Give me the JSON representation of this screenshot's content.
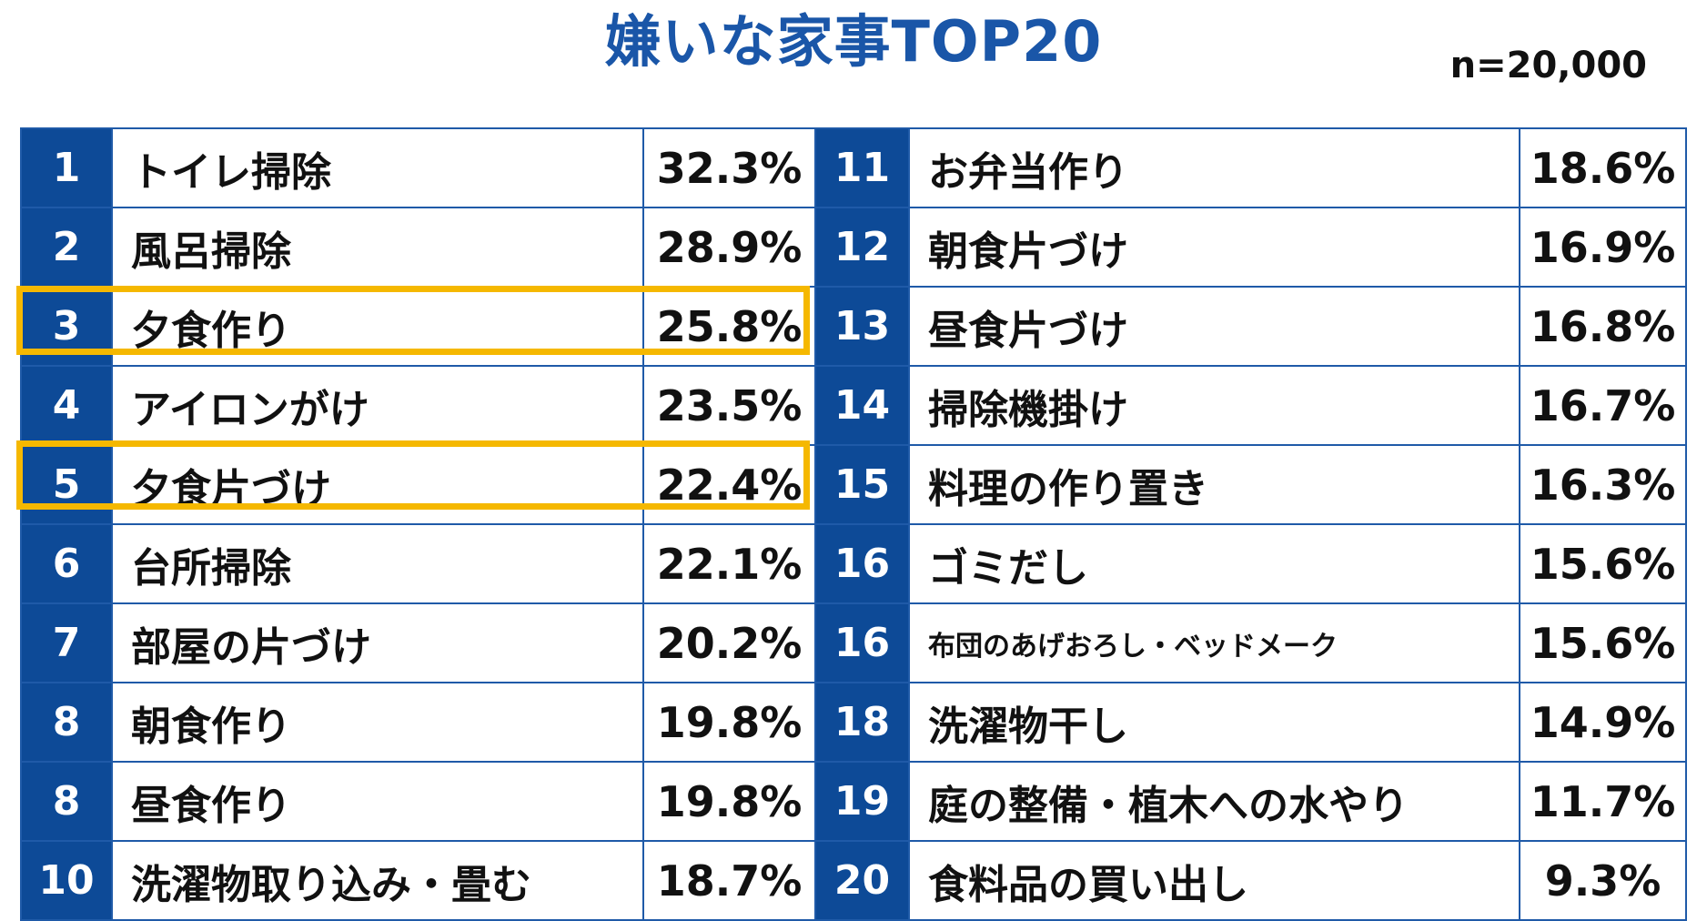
{
  "chart_data": {
    "type": "table",
    "title": "嫌いな家事TOP20",
    "sample_size": "n=20,000",
    "highlight_color": "#f5b800",
    "header_color": "#0d4a97",
    "left": [
      {
        "rank": "1",
        "label": "トイレ掃除",
        "value": "32.3%"
      },
      {
        "rank": "2",
        "label": "風呂掃除",
        "value": "28.9%"
      },
      {
        "rank": "3",
        "label": "夕食作り",
        "value": "25.8%"
      },
      {
        "rank": "4",
        "label": "アイロンがけ",
        "value": "23.5%"
      },
      {
        "rank": "5",
        "label": "夕食片づけ",
        "value": "22.4%"
      },
      {
        "rank": "6",
        "label": "台所掃除",
        "value": "22.1%"
      },
      {
        "rank": "7",
        "label": "部屋の片づけ",
        "value": "20.2%"
      },
      {
        "rank": "8",
        "label": "朝食作り",
        "value": "19.8%"
      },
      {
        "rank": "8",
        "label": "昼食作り",
        "value": "19.8%"
      },
      {
        "rank": "10",
        "label": "洗濯物取り込み・畳む",
        "value": "18.7%"
      }
    ],
    "right": [
      {
        "rank": "11",
        "label": "お弁当作り",
        "value": "18.6%"
      },
      {
        "rank": "12",
        "label": "朝食片づけ",
        "value": "16.9%"
      },
      {
        "rank": "13",
        "label": "昼食片づけ",
        "value": "16.8%"
      },
      {
        "rank": "14",
        "label": "掃除機掛け",
        "value": "16.7%"
      },
      {
        "rank": "15",
        "label": "料理の作り置き",
        "value": "16.3%"
      },
      {
        "rank": "16",
        "label": "ゴミだし",
        "value": "15.6%"
      },
      {
        "rank": "16",
        "label": "布団のあげおろし・ベッドメーク",
        "value": "15.6%"
      },
      {
        "rank": "18",
        "label": "洗濯物干し",
        "value": "14.9%"
      },
      {
        "rank": "19",
        "label": "庭の整備・植木への水やり",
        "value": "11.7%"
      },
      {
        "rank": "20",
        "label": "食料品の買い出し",
        "value": "9.3%"
      }
    ],
    "highlighted": [
      "夕食作り",
      "夕食片づけ"
    ]
  }
}
